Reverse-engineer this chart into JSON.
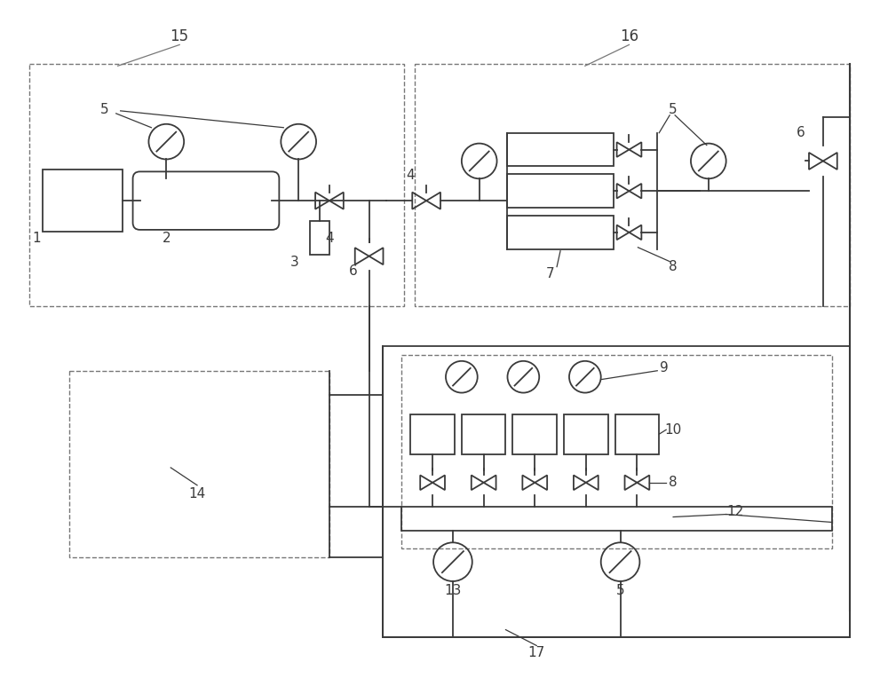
{
  "bg_color": "#ffffff",
  "line_color": "#3a3a3a",
  "dashed_color": "#777777",
  "fig_width": 10.0,
  "fig_height": 7.64,
  "dpi": 100
}
